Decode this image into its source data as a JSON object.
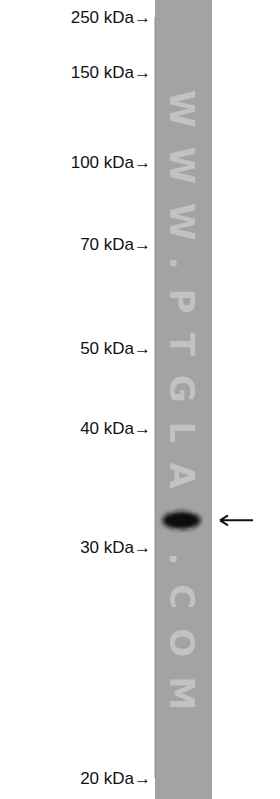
{
  "chart_data": {
    "type": "western_blot",
    "log": "y",
    "categories": [
      null
    ],
    "values": [
      32
    ],
    "color": "#111111",
    "ylim": [
      20,
      250
    ],
    "yticks": [
      {
        "value": 250,
        "label": "250 kDa→"
      },
      {
        "value": 150,
        "label": "150 kDa→"
      },
      {
        "value": 100,
        "label": "100 kDa→"
      },
      {
        "value": 70,
        "label": "70 kDa→"
      },
      {
        "value": 50,
        "label": "50 kDa→"
      },
      {
        "value": 40,
        "label": "40 kDa→"
      },
      {
        "value": 30,
        "label": "30 kDa→"
      },
      {
        "value": 20,
        "label": "20 kDa→"
      }
    ],
    "annotations": [
      "WWW.PTGLAB.COM"
    ]
  }
}
